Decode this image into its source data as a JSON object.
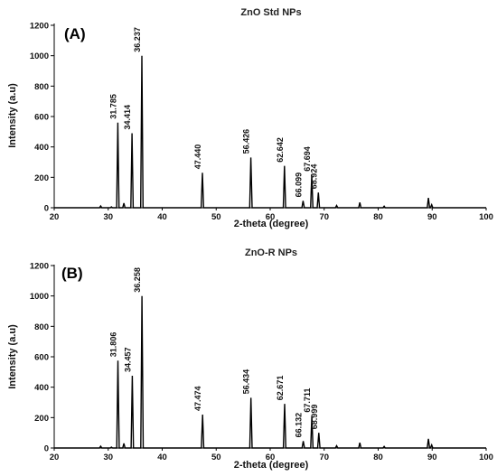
{
  "chart_data": [
    {
      "type": "line",
      "panel_label": "(A)",
      "title": "ZnO Std NPs",
      "xlabel": "2-theta (degree)",
      "ylabel": "Intensity (a.u)",
      "xlim": [
        20,
        100
      ],
      "ylim": [
        0,
        1200
      ],
      "xticks": [
        "20",
        "30",
        "40",
        "50",
        "60",
        "70",
        "80",
        "90",
        "100"
      ],
      "yticks": [
        "0",
        "200",
        "400",
        "600",
        "800",
        "1000",
        "1200"
      ],
      "color": "#000000",
      "peaks": [
        {
          "x": 28.6,
          "y": 12
        },
        {
          "x": 30.6,
          "y": 6
        },
        {
          "x": 31.785,
          "y": 560,
          "label": "31.785"
        },
        {
          "x": 32.9,
          "y": 30
        },
        {
          "x": 34.414,
          "y": 490,
          "label": "34.414"
        },
        {
          "x": 36.237,
          "y": 1000,
          "label": "36.237"
        },
        {
          "x": 47.44,
          "y": 230,
          "label": "47.440"
        },
        {
          "x": 56.426,
          "y": 330,
          "label": "56.426"
        },
        {
          "x": 62.642,
          "y": 275,
          "label": "62.642"
        },
        {
          "x": 66.099,
          "y": 45,
          "label": "66.099"
        },
        {
          "x": 67.694,
          "y": 215,
          "label": "67.694"
        },
        {
          "x": 68.924,
          "y": 100,
          "label": "68.924"
        },
        {
          "x": 72.3,
          "y": 15
        },
        {
          "x": 76.6,
          "y": 35
        },
        {
          "x": 81.1,
          "y": 10
        },
        {
          "x": 89.3,
          "y": 65
        },
        {
          "x": 89.9,
          "y": 20
        }
      ]
    },
    {
      "type": "line",
      "panel_label": "(B)",
      "title": "ZnO-R NPs",
      "xlabel": "2-theta (degree)",
      "ylabel": "Intensity (a.u)",
      "xlim": [
        20,
        100
      ],
      "ylim": [
        0,
        1200
      ],
      "xticks": [
        "20",
        "30",
        "40",
        "50",
        "60",
        "70",
        "80",
        "90",
        "100"
      ],
      "yticks": [
        "0",
        "200",
        "400",
        "600",
        "800",
        "1000",
        "1200"
      ],
      "color": "#000000",
      "peaks": [
        {
          "x": 28.6,
          "y": 12
        },
        {
          "x": 30.6,
          "y": 6
        },
        {
          "x": 31.806,
          "y": 575,
          "label": "31.806"
        },
        {
          "x": 32.9,
          "y": 30
        },
        {
          "x": 34.457,
          "y": 475,
          "label": "34.457"
        },
        {
          "x": 36.258,
          "y": 1000,
          "label": "36.258"
        },
        {
          "x": 47.474,
          "y": 220,
          "label": "47.474"
        },
        {
          "x": 56.434,
          "y": 330,
          "label": "56.434"
        },
        {
          "x": 62.671,
          "y": 290,
          "label": "62.671"
        },
        {
          "x": 66.132,
          "y": 45,
          "label": "66.132"
        },
        {
          "x": 67.711,
          "y": 210,
          "label": "67.711"
        },
        {
          "x": 68.999,
          "y": 100,
          "label": "68.999"
        },
        {
          "x": 72.3,
          "y": 15
        },
        {
          "x": 76.6,
          "y": 35
        },
        {
          "x": 81.1,
          "y": 10
        },
        {
          "x": 89.3,
          "y": 60
        },
        {
          "x": 89.9,
          "y": 20
        }
      ]
    }
  ]
}
